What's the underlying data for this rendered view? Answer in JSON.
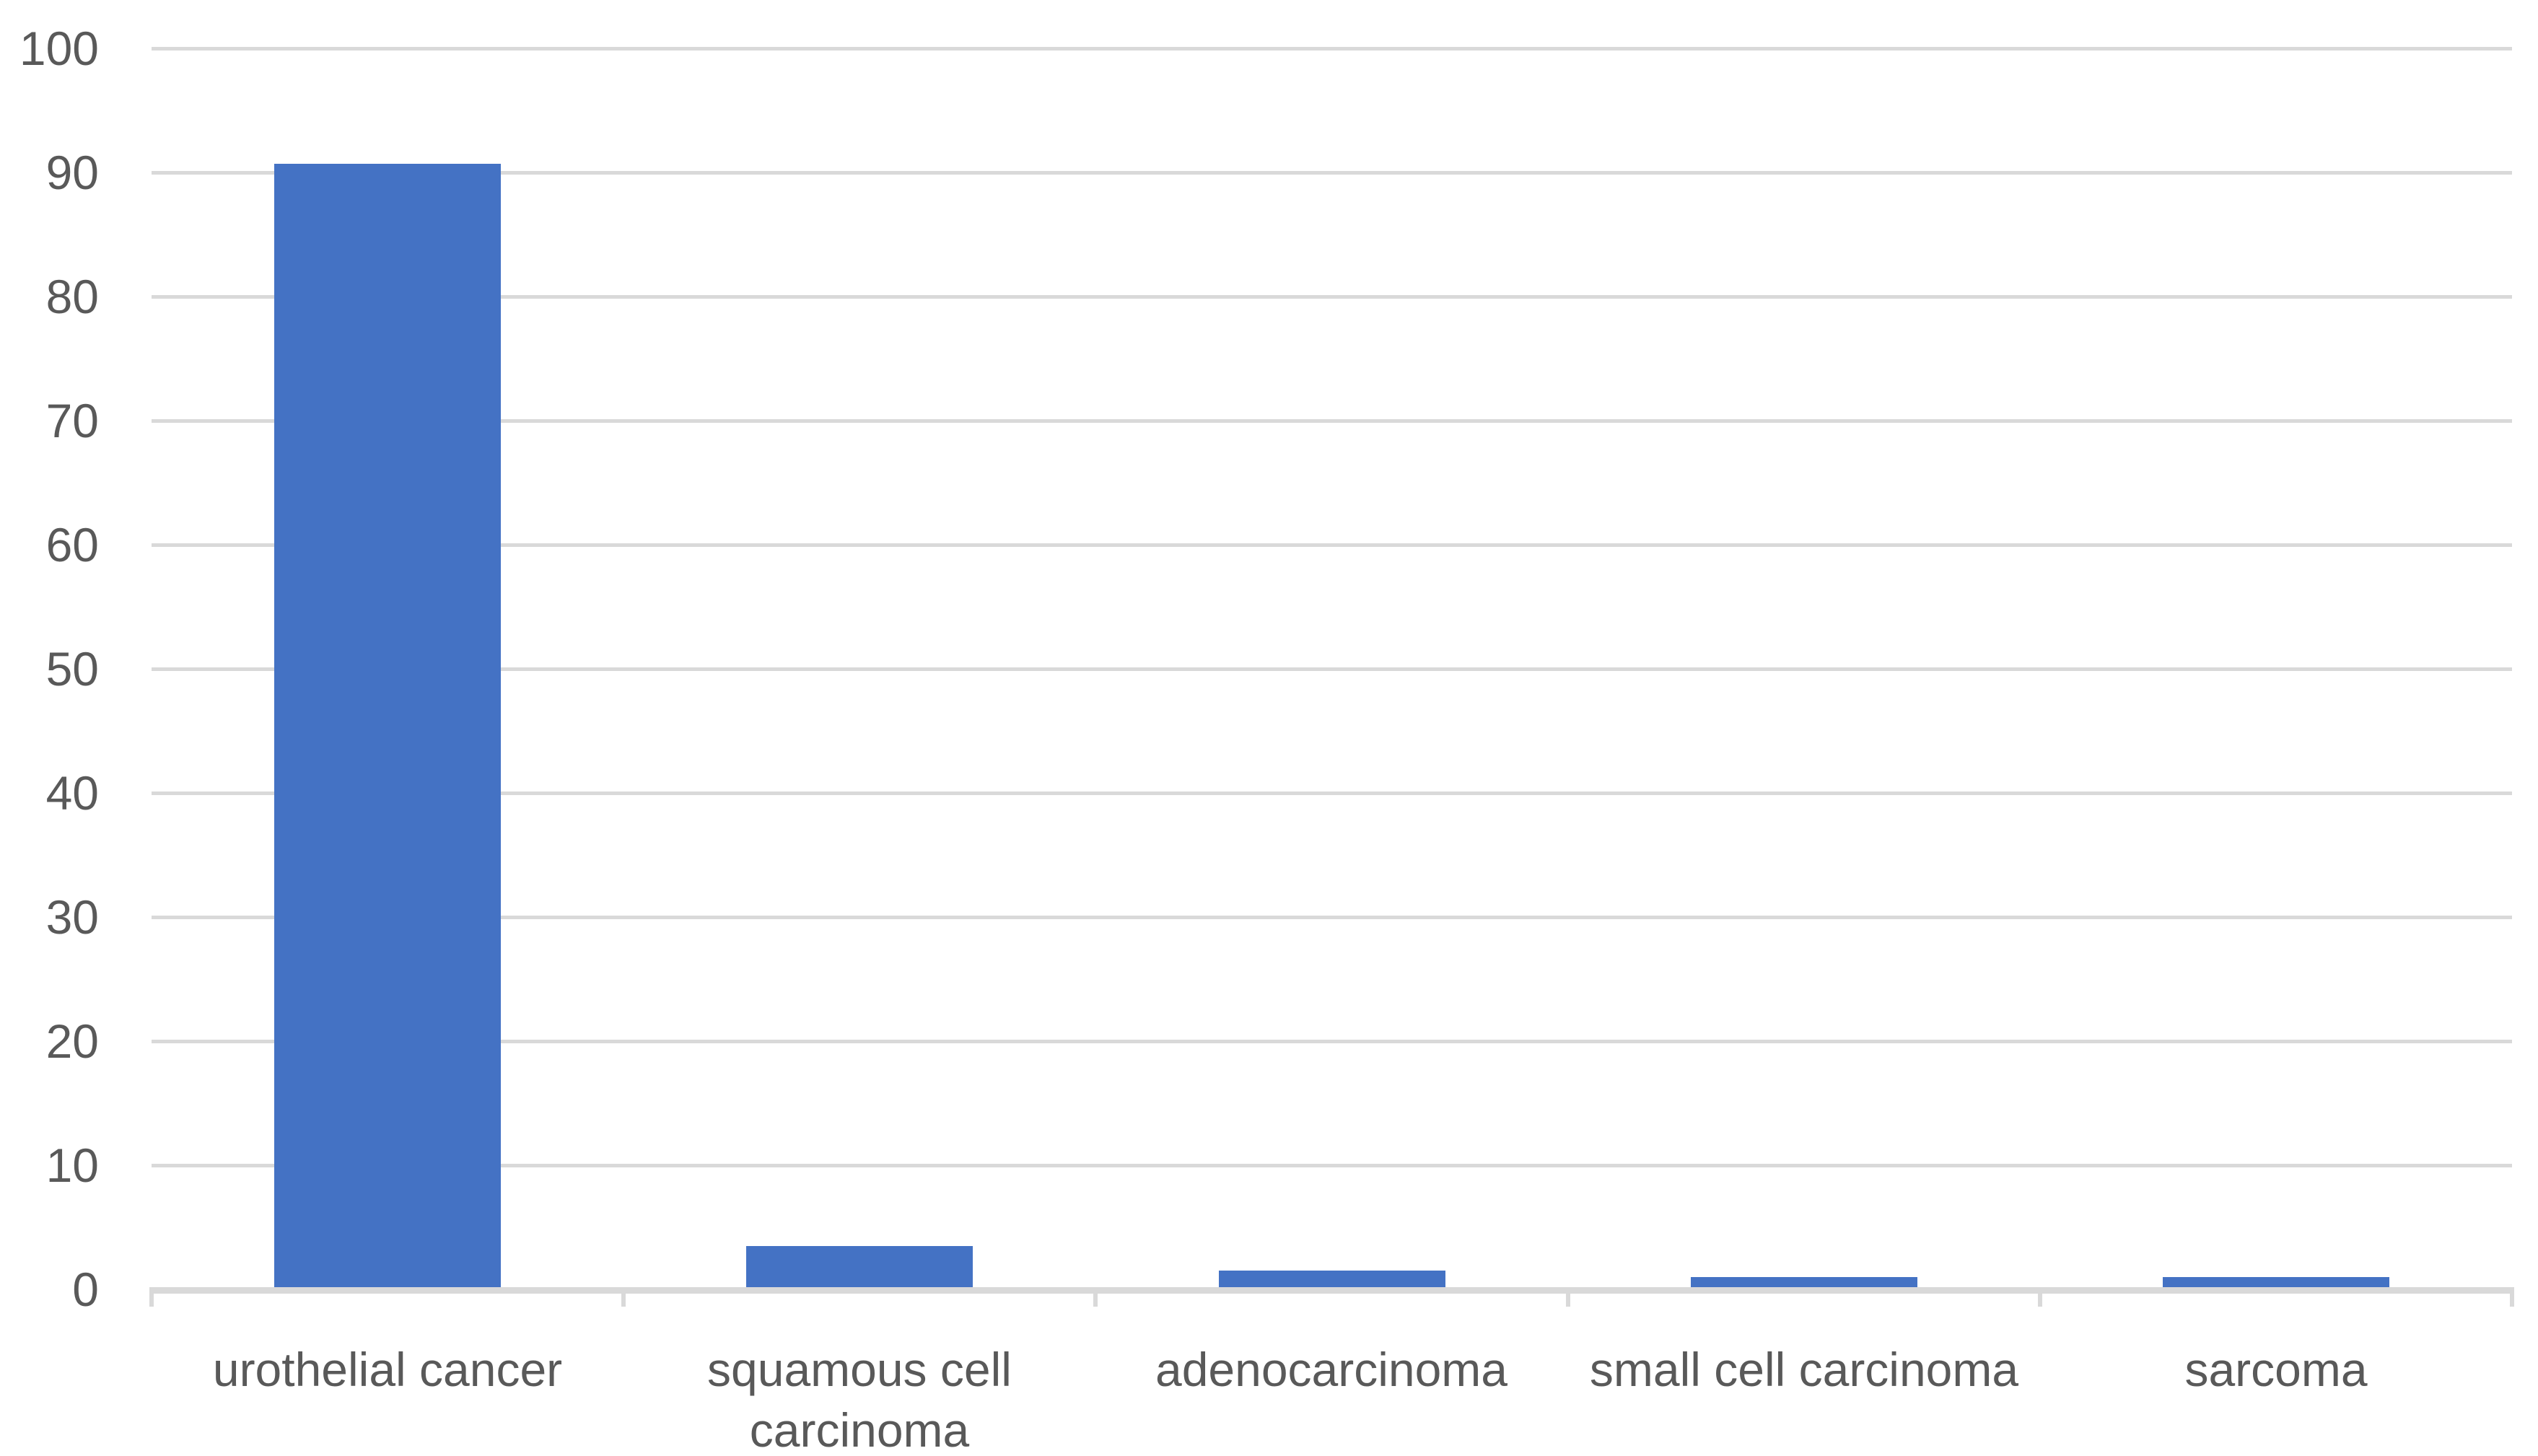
{
  "chart_data": {
    "type": "bar",
    "title": "",
    "xlabel": "",
    "ylabel": "",
    "categories": [
      "urothelial cancer",
      "squamous cell\ncarcinoma",
      "adenocarcinoma",
      "small cell carcinoma",
      "sarcoma"
    ],
    "values": [
      90.7,
      3.5,
      1.5,
      1,
      1
    ],
    "ylim": [
      0,
      100
    ],
    "yticks": [
      0,
      10,
      20,
      30,
      40,
      50,
      60,
      70,
      80,
      90,
      100
    ],
    "grid": "horizontal",
    "legend_position": "none",
    "colors": {
      "bar": "#4472C4",
      "gridline": "#D9D9D9",
      "axis_line": "#D9D9D9",
      "label_text": "#595959"
    }
  }
}
